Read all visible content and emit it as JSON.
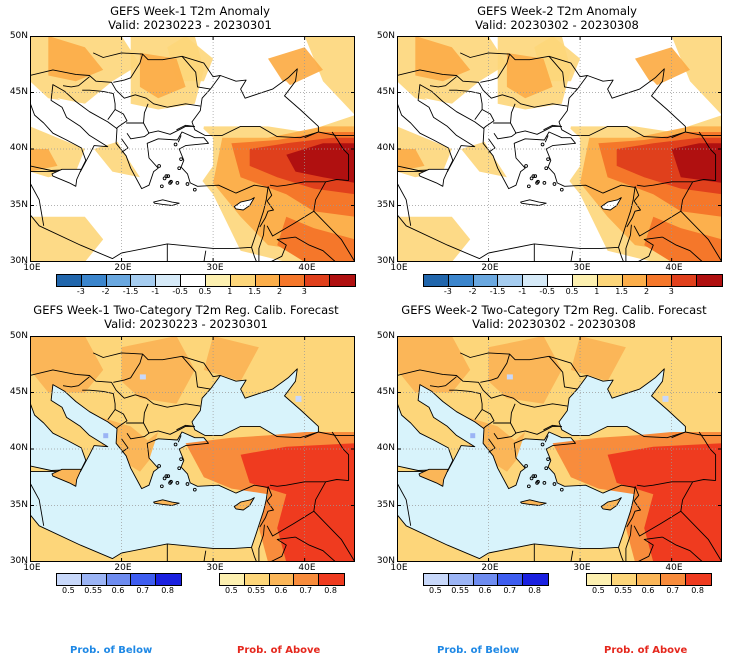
{
  "panels": [
    {
      "title": "GEFS Week-1 T2m Anomaly",
      "valid": "Valid: 20230223 - 20230301"
    },
    {
      "title": "GEFS Week-2 T2m Anomaly",
      "valid": "Valid: 20230302 - 20230308"
    },
    {
      "title": "GEFS Week-1 Two-Category T2m Reg. Calib. Forecast",
      "valid": "Valid: 20230223 - 20230301"
    },
    {
      "title": "GEFS Week-2 Two-Category T2m Reg. Calib. Forecast",
      "valid": "Valid: 20230302 - 20230308"
    }
  ],
  "axes": {
    "lat": [
      "50N",
      "45N",
      "40N",
      "35N",
      "30N"
    ],
    "lon": [
      "10E",
      "20E",
      "30E",
      "40E"
    ]
  },
  "anomaly_colorbar": {
    "labels": [
      "-3",
      "-2",
      "-1.5",
      "-1",
      "-0.5",
      "0.5",
      "1",
      "1.5",
      "2",
      "3"
    ],
    "colors": [
      "#2166ac",
      "#3b85cc",
      "#6aa8e0",
      "#a6cdf0",
      "#d6eaf8",
      "#ffffff",
      "#fdf0b0",
      "#fdd67a",
      "#fcae4a",
      "#f5772a",
      "#e0401c",
      "#b01010"
    ]
  },
  "prob_below": {
    "labels": [
      "0.5",
      "0.55",
      "0.6",
      "0.7",
      "0.8"
    ],
    "colors": [
      "#c8d8fa",
      "#9bb4f5",
      "#6e8cf0",
      "#3e5df0",
      "#1a20e0"
    ],
    "legend": "Prob. of Below"
  },
  "prob_above": {
    "labels": [
      "0.5",
      "0.55",
      "0.6",
      "0.7",
      "0.8"
    ],
    "colors": [
      "#fdf0b0",
      "#fdd67a",
      "#fbb658",
      "#f88c3c",
      "#ef3b1f"
    ],
    "legend": "Prob. of Above"
  },
  "colors": {
    "sea_prob": "#d8f3fb",
    "border": "#000000",
    "grid": "#999999"
  }
}
